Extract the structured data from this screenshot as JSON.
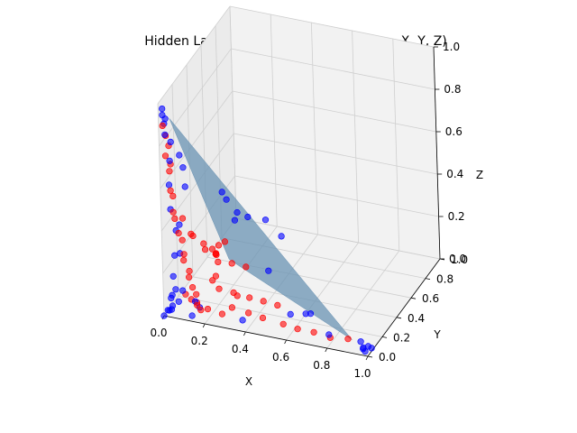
{
  "chart_data": {
    "type": "scatter",
    "projection": "3d",
    "title": "Hidden Layer Output (Three Neurons -> X, Y, Z)",
    "xlabel": "X",
    "ylabel": "Y",
    "zlabel": "Z",
    "xlim": [
      0.0,
      1.0
    ],
    "ylim": [
      0.0,
      1.0
    ],
    "zlim": [
      0.0,
      1.0
    ],
    "grid": true,
    "x_ticks": [
      "0.0",
      "0.2",
      "0.4",
      "0.6",
      "0.8",
      "1.0"
    ],
    "y_ticks": [
      "0.0",
      "0.2",
      "0.4",
      "0.6",
      "0.8",
      "1.0"
    ],
    "z_ticks": [
      "0.0",
      "0.2",
      "0.4",
      "0.6",
      "0.8",
      "1.0"
    ],
    "colors": {
      "series_blue": "#0000ff",
      "series_red": "#ff0000",
      "surface": "#6a93b3",
      "pane": "#f2f2f2",
      "grid": "#cfcfcf"
    },
    "surface": {
      "type": "plane",
      "vertices": [
        [
          0.04,
          0.04,
          0.92
        ],
        [
          0.88,
          0.12,
          0.0
        ],
        [
          0.1,
          0.62,
          0.0
        ]
      ]
    },
    "series": [
      {
        "color": "blue",
        "points": [
          [
            0.02,
            0.0,
            0.98
          ],
          [
            0.02,
            0.0,
            0.95
          ],
          [
            0.03,
            0.01,
            0.93
          ],
          [
            0.02,
            0.02,
            0.9
          ],
          [
            0.03,
            0.0,
            0.86
          ],
          [
            0.05,
            0.02,
            0.82
          ],
          [
            0.05,
            0.0,
            0.74
          ],
          [
            0.04,
            0.01,
            0.62
          ],
          [
            0.08,
            0.05,
            0.75
          ],
          [
            0.1,
            0.04,
            0.7
          ],
          [
            0.1,
            0.06,
            0.6
          ],
          [
            0.04,
            0.02,
            0.5
          ],
          [
            0.06,
            0.03,
            0.4
          ],
          [
            0.08,
            0.02,
            0.3
          ],
          [
            0.07,
            0.05,
            0.42
          ],
          [
            0.05,
            0.03,
            0.28
          ],
          [
            0.04,
            0.03,
            0.18
          ],
          [
            0.05,
            0.03,
            0.12
          ],
          [
            0.03,
            0.02,
            0.08
          ],
          [
            0.04,
            0.01,
            0.1
          ],
          [
            0.04,
            0.01,
            0.05
          ],
          [
            0.02,
            0.0,
            0.03
          ],
          [
            0.0,
            0.0,
            0.0
          ],
          [
            0.02,
            0.02,
            0.02
          ],
          [
            0.06,
            0.04,
            0.06
          ],
          [
            0.12,
            0.05,
            0.0
          ],
          [
            0.02,
            0.05,
            0.01
          ],
          [
            0.14,
            0.1,
            0.02
          ],
          [
            0.07,
            0.07,
            0.1
          ],
          [
            0.13,
            0.07,
            0.06
          ],
          [
            0.35,
            0.1,
            0.0
          ],
          [
            0.55,
            0.2,
            0.02
          ],
          [
            0.6,
            0.27,
            0.0
          ],
          [
            0.62,
            0.28,
            0.0
          ],
          [
            0.93,
            0.1,
            0.01
          ],
          [
            0.97,
            0.09,
            0.0
          ],
          [
            0.99,
            0.08,
            0.0
          ],
          [
            0.96,
            0.05,
            0.01
          ],
          [
            0.8,
            0.03,
            0.05
          ],
          [
            0.97,
            0.02,
            0.02
          ],
          [
            0.98,
            0.02,
            0.01
          ],
          [
            0.5,
            0.06,
            0.28
          ],
          [
            0.1,
            0.55,
            0.35
          ],
          [
            0.08,
            0.66,
            0.26
          ],
          [
            0.15,
            0.75,
            0.15
          ],
          [
            0.2,
            0.85,
            0.1
          ],
          [
            0.0,
            0.98,
            0.0
          ],
          [
            0.02,
            0.96,
            0.05
          ],
          [
            0.25,
            0.92,
            0.0
          ]
        ]
      },
      {
        "color": "red",
        "points": [
          [
            0.02,
            0.0,
            0.9
          ],
          [
            0.03,
            0.01,
            0.85
          ],
          [
            0.04,
            0.02,
            0.8
          ],
          [
            0.03,
            0.0,
            0.76
          ],
          [
            0.05,
            0.01,
            0.72
          ],
          [
            0.04,
            0.02,
            0.68
          ],
          [
            0.05,
            0.0,
            0.6
          ],
          [
            0.05,
            0.03,
            0.56
          ],
          [
            0.06,
            0.0,
            0.5
          ],
          [
            0.06,
            0.02,
            0.46
          ],
          [
            0.08,
            0.01,
            0.4
          ],
          [
            0.09,
            0.03,
            0.36
          ],
          [
            0.1,
            0.02,
            0.3
          ],
          [
            0.09,
            0.04,
            0.26
          ],
          [
            0.12,
            0.03,
            0.22
          ],
          [
            0.11,
            0.05,
            0.18
          ],
          [
            0.13,
            0.04,
            0.14
          ],
          [
            0.14,
            0.06,
            0.1
          ],
          [
            0.15,
            0.04,
            0.06
          ],
          [
            0.16,
            0.06,
            0.03
          ],
          [
            0.08,
            0.08,
            0.08
          ],
          [
            0.1,
            0.1,
            0.05
          ],
          [
            0.12,
            0.12,
            0.03
          ],
          [
            0.18,
            0.1,
            0.02
          ],
          [
            0.25,
            0.1,
            0.01
          ],
          [
            0.3,
            0.1,
            0.05
          ],
          [
            0.38,
            0.1,
            0.04
          ],
          [
            0.45,
            0.1,
            0.03
          ],
          [
            0.55,
            0.1,
            0.02
          ],
          [
            0.62,
            0.1,
            0.01
          ],
          [
            0.7,
            0.1,
            0.01
          ],
          [
            0.78,
            0.1,
            0.0
          ],
          [
            0.86,
            0.12,
            0.0
          ],
          [
            0.2,
            0.2,
            0.2
          ],
          [
            0.25,
            0.25,
            0.18
          ],
          [
            0.3,
            0.3,
            0.15
          ],
          [
            0.2,
            0.3,
            0.25
          ],
          [
            0.15,
            0.35,
            0.2
          ],
          [
            0.1,
            0.4,
            0.15
          ],
          [
            0.1,
            0.45,
            0.1
          ],
          [
            0.08,
            0.5,
            0.08
          ],
          [
            0.06,
            0.55,
            0.05
          ],
          [
            0.15,
            0.15,
            0.3
          ],
          [
            0.1,
            0.12,
            0.35
          ],
          [
            0.18,
            0.22,
            0.12
          ],
          [
            0.22,
            0.15,
            0.1
          ],
          [
            0.28,
            0.18,
            0.08
          ],
          [
            0.35,
            0.2,
            0.06
          ],
          [
            0.4,
            0.25,
            0.03
          ],
          [
            0.48,
            0.22,
            0.04
          ],
          [
            0.32,
            0.12,
            0.1
          ],
          [
            0.05,
            0.15,
            0.4
          ],
          [
            0.08,
            0.2,
            0.3
          ],
          [
            0.12,
            0.25,
            0.22
          ],
          [
            0.2,
            0.12,
            0.15
          ]
        ]
      }
    ]
  }
}
